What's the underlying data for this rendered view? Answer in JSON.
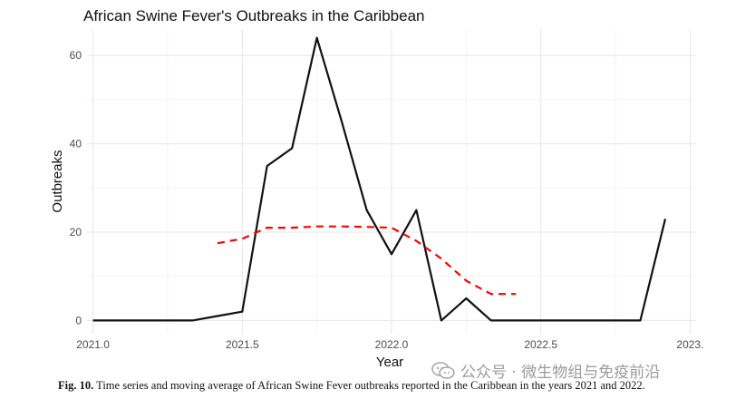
{
  "chart_data": {
    "type": "line",
    "title": "African Swine Fever's Outbreaks in the Caribbean",
    "xlabel": "Year",
    "ylabel": "Outbreaks",
    "xlim": [
      2020.98,
      2023.02
    ],
    "ylim": [
      -3,
      66
    ],
    "x_ticks": [
      2021.0,
      2021.5,
      2022.0,
      2022.5,
      2023.0
    ],
    "x_tick_labels": [
      "2021.0",
      "2021.5",
      "2022.0",
      "2022.5",
      "2023."
    ],
    "y_ticks": [
      0,
      20,
      40,
      60
    ],
    "y_tick_labels": [
      "0",
      "20",
      "40",
      "60"
    ],
    "grid": true,
    "series": [
      {
        "name": "Outbreaks",
        "style": "solid",
        "color": "#111111",
        "x": [
          2021.0,
          2021.0833,
          2021.1667,
          2021.25,
          2021.3333,
          2021.4167,
          2021.5,
          2021.5833,
          2021.6667,
          2021.75,
          2021.8333,
          2021.9167,
          2022.0,
          2022.0833,
          2022.1667,
          2022.25,
          2022.3333,
          2022.4167,
          2022.5,
          2022.5833,
          2022.6667,
          2022.75,
          2022.8333,
          2022.9167
        ],
        "values": [
          0,
          0,
          0,
          0,
          0,
          1,
          2,
          35,
          39,
          64,
          45,
          25,
          15,
          25,
          0,
          5,
          0,
          0,
          0,
          0,
          0,
          0,
          0,
          23
        ]
      },
      {
        "name": "Moving average",
        "style": "dashed",
        "color": "#ff0000",
        "x": [
          2021.4167,
          2021.5,
          2021.5833,
          2021.6667,
          2021.75,
          2021.8333,
          2021.9167,
          2022.0,
          2022.0833,
          2022.1667,
          2022.25,
          2022.3333,
          2022.4167
        ],
        "values": [
          17.5,
          18.5,
          21,
          21,
          21.3,
          21.3,
          21.2,
          21,
          18,
          14,
          9,
          6,
          6
        ]
      }
    ]
  },
  "caption": {
    "label": "Fig. 10.",
    "text": "Time series and moving average of African Swine Fever outbreaks reported in the Caribbean in the years 2021 and 2022."
  },
  "watermark": {
    "text": "公众号 · 微生物组与免疫前沿"
  }
}
